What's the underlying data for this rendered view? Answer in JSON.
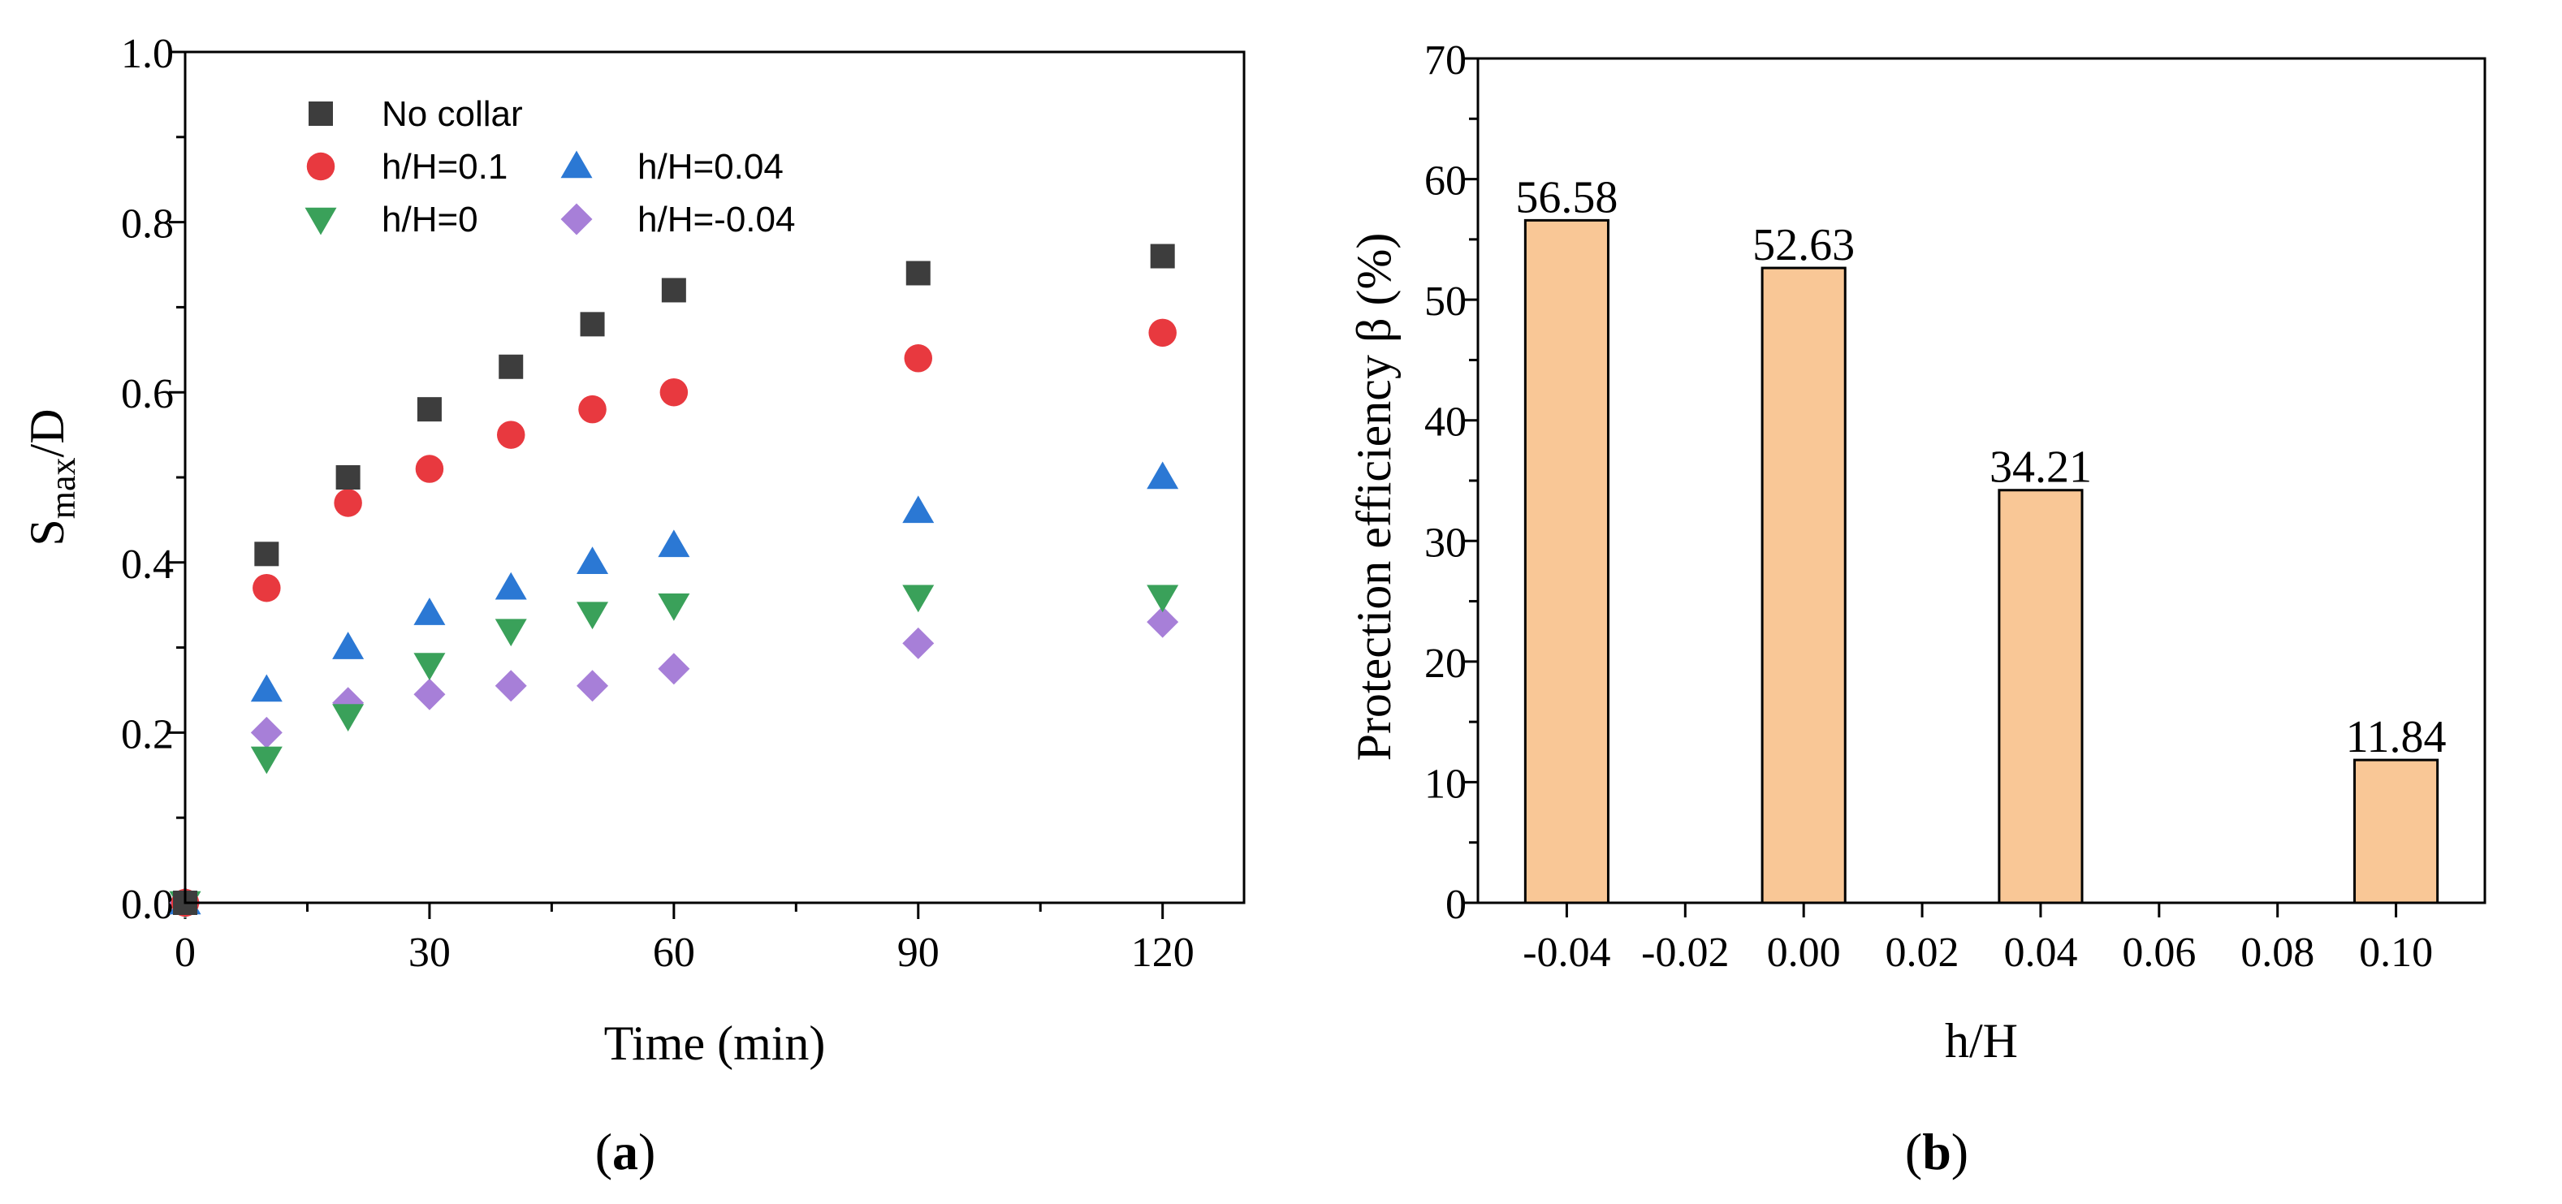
{
  "chart_data": [
    {
      "panel": "a",
      "type": "scatter",
      "xlabel": "Time (min)",
      "ylabel_main": "S",
      "ylabel_sub": "max",
      "ylabel_tail": "/D",
      "xlim": [
        0,
        130
      ],
      "ylim": [
        0,
        1.0
      ],
      "xticks": [
        0,
        30,
        60,
        90,
        120
      ],
      "xtick_labels": [
        "0",
        "30",
        "60",
        "90",
        "120"
      ],
      "yticks": [
        0,
        0.2,
        0.4,
        0.6,
        0.8,
        1.0
      ],
      "ytick_labels": [
        "0.0",
        "0.2",
        "0.4",
        "0.6",
        "0.8",
        "1.0"
      ],
      "legend_position": "top-left",
      "x": [
        0,
        10,
        20,
        30,
        40,
        50,
        60,
        90,
        120
      ],
      "series": [
        {
          "name": "No collar",
          "marker": "square",
          "color": "#3d3d3d",
          "values": [
            0,
            0.41,
            0.5,
            0.58,
            0.63,
            0.68,
            0.72,
            0.74,
            0.76
          ]
        },
        {
          "name": "h/H=0.1",
          "marker": "circle",
          "color": "#e8393f",
          "values": [
            0,
            0.37,
            0.47,
            0.51,
            0.55,
            0.58,
            0.6,
            0.64,
            0.67
          ]
        },
        {
          "name": "h/H=0.04",
          "marker": "triangle-up",
          "color": "#2b78d4",
          "values": [
            0,
            0.25,
            0.3,
            0.34,
            0.37,
            0.4,
            0.42,
            0.46,
            0.5
          ]
        },
        {
          "name": "h/H=0",
          "marker": "triangle-down",
          "color": "#3aa15a",
          "values": [
            0,
            0.17,
            0.22,
            0.28,
            0.32,
            0.34,
            0.35,
            0.36,
            0.36
          ]
        },
        {
          "name": "h/H=-0.04",
          "marker": "diamond",
          "color": "#a77fd8",
          "values": [
            0,
            0.2,
            0.235,
            0.245,
            0.255,
            0.255,
            0.275,
            0.305,
            0.33
          ]
        }
      ],
      "caption_letter": "a"
    },
    {
      "panel": "b",
      "type": "bar",
      "xlabel": "h/H",
      "ylabel": "Protection efficiency β (%)",
      "xlim": [
        -0.055,
        0.115
      ],
      "ylim": [
        0,
        70
      ],
      "xticks": [
        -0.04,
        -0.02,
        0.0,
        0.02,
        0.04,
        0.06,
        0.08,
        0.1
      ],
      "xtick_labels": [
        "-0.04",
        "-0.02",
        "0.00",
        "0.02",
        "0.04",
        "0.06",
        "0.08",
        "0.10"
      ],
      "yticks": [
        0,
        10,
        20,
        30,
        40,
        50,
        60,
        70
      ],
      "ytick_labels": [
        "0",
        "10",
        "20",
        "30",
        "40",
        "50",
        "60",
        "70"
      ],
      "bar_color": "#f9c796",
      "bar_width": 0.014,
      "x": [
        -0.04,
        0.0,
        0.04,
        0.1
      ],
      "values": [
        56.58,
        52.63,
        34.21,
        11.84
      ],
      "data_labels": [
        "56.58",
        "52.63",
        "34.21",
        "11.84"
      ],
      "caption_letter": "b"
    }
  ]
}
